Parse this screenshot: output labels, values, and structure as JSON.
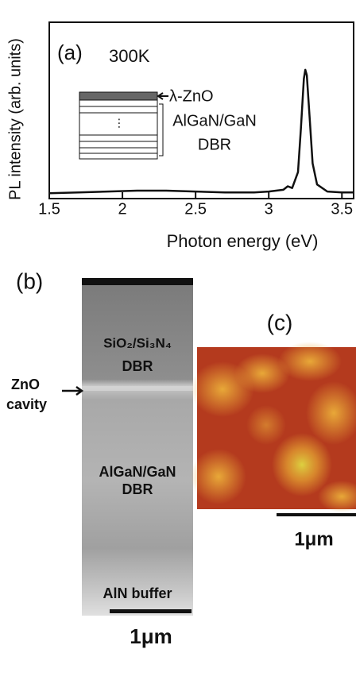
{
  "chart_data": {
    "type": "line",
    "x_label": "Photon energy (eV)",
    "y_label": "PL intensity (arb. units)",
    "x": [
      1.5,
      1.7,
      1.9,
      2.1,
      2.3,
      2.5,
      2.7,
      2.9,
      3.0,
      3.1,
      3.13,
      3.16,
      3.2,
      3.22,
      3.24,
      3.25,
      3.26,
      3.28,
      3.3,
      3.33,
      3.4,
      3.5,
      3.58
    ],
    "y": [
      0.03,
      0.035,
      0.04,
      0.045,
      0.045,
      0.04,
      0.035,
      0.035,
      0.04,
      0.05,
      0.07,
      0.06,
      0.15,
      0.4,
      0.68,
      0.73,
      0.7,
      0.45,
      0.2,
      0.08,
      0.04,
      0.035,
      0.035
    ],
    "color": "#111111",
    "xlim": [
      1.5,
      3.58
    ],
    "ylim": [
      0,
      1
    ],
    "xticks": [
      1.5,
      2.0,
      2.5,
      3.0,
      3.5
    ],
    "annotations": {
      "panel": "(a)",
      "temperature": "300K",
      "layer": "λ-ZnO",
      "dbr_material": "AlGaN/GaN",
      "dbr": "DBR"
    }
  },
  "panels": {
    "b": {
      "label": "(b)",
      "top_dbr": "SiO₂/Si₃N₄",
      "top_dbr_2": "DBR",
      "cavity_1": "ZnO",
      "cavity_2": "cavity",
      "bottom_dbr": "AlGaN/GaN",
      "bottom_dbr_2": "DBR",
      "buffer": "AlN buffer",
      "scale": "1μm"
    },
    "c": {
      "label": "(c)",
      "scale": "1μm"
    }
  }
}
